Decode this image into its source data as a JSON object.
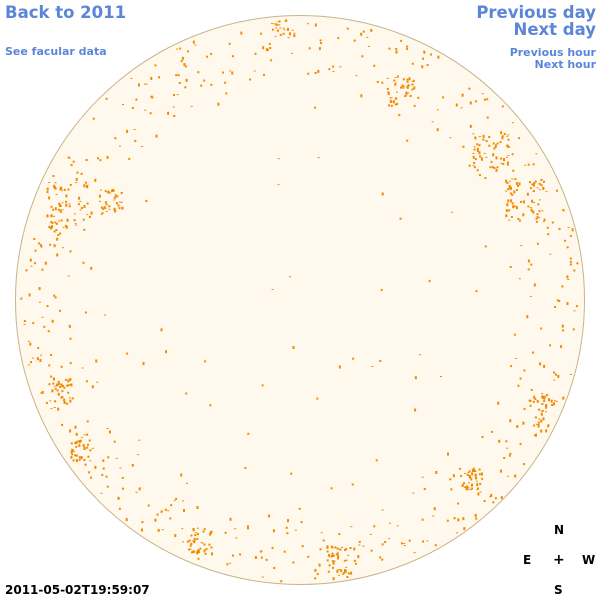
{
  "nav": {
    "back": "Back to 2011",
    "facular": "See facular data",
    "previous_day": "Previous day",
    "next_day": "Next day",
    "previous_hour": "Previous hour",
    "next_hour": "Next hour"
  },
  "timestamp": "2011-05-02T19:59:07",
  "compass": {
    "north": "N",
    "east": "E",
    "center": "+",
    "west": "W",
    "south": "S"
  },
  "colors": {
    "link": "#5b86d8",
    "disk": "#fff8ec",
    "limb": "#c9b48a",
    "feature": "#f08a00"
  }
}
